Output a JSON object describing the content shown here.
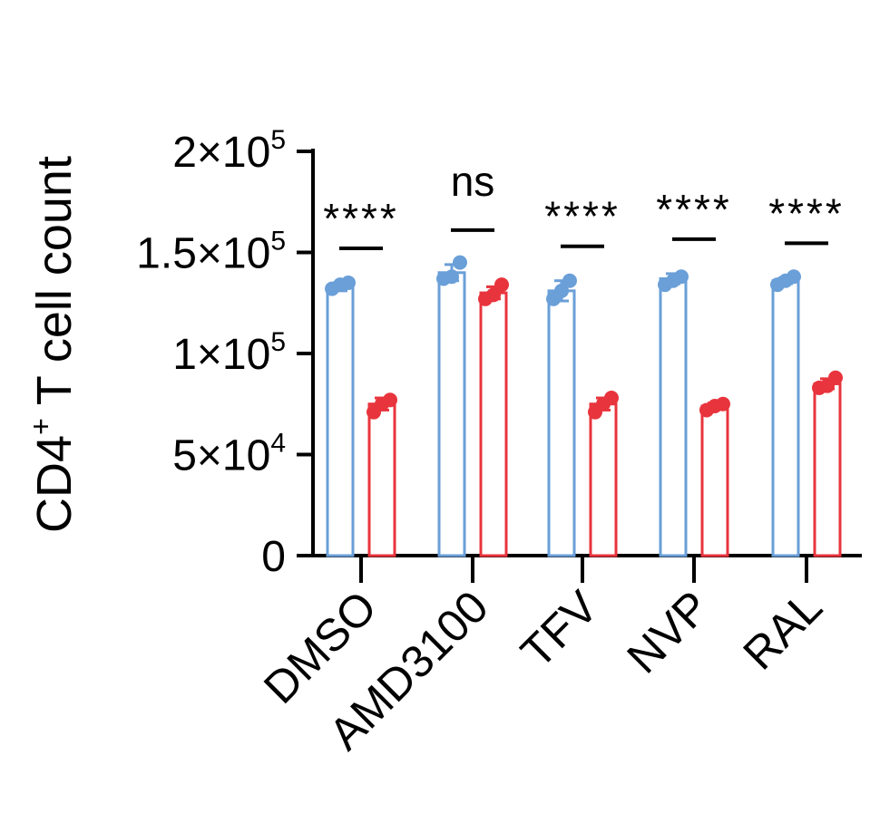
{
  "chart_data": {
    "type": "bar",
    "title": "",
    "ylabel": {
      "main": "CD4",
      "sup": "+",
      "rest": " T cell count"
    },
    "xlabel": "",
    "ylim": [
      0,
      200000
    ],
    "yticks": [
      {
        "value": 0,
        "base": "0",
        "exp": ""
      },
      {
        "value": 50000,
        "base": "5×10",
        "exp": "4"
      },
      {
        "value": 100000,
        "base": "1×10",
        "exp": "5"
      },
      {
        "value": 150000,
        "base": "1.5×10",
        "exp": "5"
      },
      {
        "value": 200000,
        "base": "2×10",
        "exp": "5"
      }
    ],
    "categories": [
      "DMSO",
      "AMD3100",
      "TFV",
      "NVP",
      "RAL"
    ],
    "colors": [
      "#6a9fd8",
      "#e8343c"
    ],
    "series": [
      {
        "values": [
          133000,
          140000,
          131000,
          137000,
          136000
        ],
        "errors": [
          2000,
          4000,
          5000,
          2500,
          1500
        ],
        "points": [
          [
            132000,
            134000,
            135000
          ],
          [
            137000,
            138000,
            145000
          ],
          [
            127000,
            131000,
            136000
          ],
          [
            134000,
            136000,
            138000
          ],
          [
            134000,
            136000,
            138000
          ]
        ]
      },
      {
        "values": [
          75000,
          130000,
          75000,
          74000,
          85000
        ],
        "errors": [
          3000,
          3000,
          3000,
          1500,
          2500
        ],
        "points": [
          [
            71000,
            75000,
            77000
          ],
          [
            127000,
            129000,
            134000
          ],
          [
            71000,
            75000,
            78000
          ],
          [
            72000,
            74000,
            75000
          ],
          [
            83000,
            84000,
            88000
          ]
        ]
      }
    ],
    "significance": [
      "****",
      "ns",
      "****",
      "****",
      "****"
    ],
    "grid": false,
    "legend": "none"
  }
}
